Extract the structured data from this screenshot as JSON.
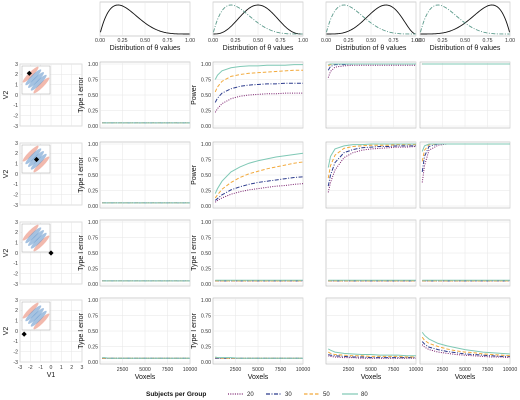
{
  "chart_data": {
    "type": "line",
    "colors": {
      "s20": "#7a1f6e",
      "s30": "#2b3a8c",
      "s50": "#f2a93b",
      "s80": "#7fc8b5",
      "dist_solid": "#111111",
      "dist_dash": "#5d9b8c",
      "blob_red": "#e8806a",
      "blob_blue": "#5b8fc9"
    },
    "legend": {
      "title": "Subjects per Group",
      "placement": "bottom",
      "entries": [
        {
          "label": "20",
          "style": "dotted",
          "color": "#7a1f6e"
        },
        {
          "label": "30",
          "style": "dashdot",
          "color": "#2b3a8c"
        },
        {
          "label": "50",
          "style": "dashed",
          "color": "#f2a93b"
        },
        {
          "label": "80",
          "style": "solid",
          "color": "#7fc8b5"
        }
      ]
    },
    "distribution_panels": {
      "xlabel": "Distribution of θ values",
      "xticks": [
        "0.00",
        "0.25",
        "0.50",
        "0.75",
        "1.00"
      ],
      "xlim": [
        0,
        1
      ],
      "panels": [
        {
          "column": 1,
          "curves": [
            {
              "style": "solid",
              "shape": "beta",
              "a": 2,
              "b": 5
            }
          ]
        },
        {
          "column": 2,
          "curves": [
            {
              "style": "solid",
              "shape": "beta",
              "a": 4,
              "b": 4
            },
            {
              "style": "dashdot",
              "shape": "beta",
              "a": 2,
              "b": 5
            }
          ]
        },
        {
          "column": 3,
          "curves": [
            {
              "style": "solid",
              "shape": "beta",
              "a": 5,
              "b": 3
            },
            {
              "style": "dashdot",
              "shape": "beta",
              "a": 2,
              "b": 5
            }
          ]
        },
        {
          "column": 4,
          "curves": [
            {
              "style": "solid",
              "shape": "beta",
              "a": 5,
              "b": 2
            },
            {
              "style": "dashdot",
              "shape": "beta",
              "a": 2,
              "b": 5
            }
          ]
        }
      ]
    },
    "location_panels": {
      "xlabel": "V1",
      "ylabel": "V2",
      "xlim": [
        -3,
        3
      ],
      "ylim": [
        -3,
        3
      ],
      "xticks": [
        -3,
        -2,
        -1,
        0,
        1,
        2,
        3
      ],
      "yticks": [
        -3,
        -2,
        -1,
        0,
        1,
        2,
        3
      ],
      "points": [
        {
          "row": 1,
          "x": -2.1,
          "y": 2.1
        },
        {
          "row": 2,
          "x": -1.4,
          "y": 1.4
        },
        {
          "row": 3,
          "x": 0.0,
          "y": 0.0
        },
        {
          "row": 4,
          "x": -2.6,
          "y": -0.3
        }
      ]
    },
    "result_panels": {
      "xlabel": "Voxels",
      "x": [
        250,
        500,
        1000,
        2000,
        3000,
        4000,
        5000,
        6000,
        7000,
        8000,
        9000,
        10000
      ],
      "xlim": [
        0,
        10000
      ],
      "xticks": [
        2500,
        5000,
        7500,
        10000
      ],
      "xtick_labels": [
        "2500",
        "5000",
        "7500",
        "10000"
      ],
      "ylim": [
        0,
        1
      ],
      "yticks": [
        0,
        0.25,
        0.5,
        0.75,
        1
      ],
      "ytick_labels": [
        "0.00",
        "0.25",
        "0.50",
        "0.75",
        "1.00"
      ],
      "ylabels": {
        "r1c1": "Type I error",
        "r1c2": "Power",
        "r2c1": "Type I error",
        "r2c2": "Power",
        "r3c1": "Type I error",
        "r3c2": "Type I error",
        "r4c1": "Type I error",
        "r4c2": "Type I error"
      },
      "series_order": [
        "20",
        "30",
        "50",
        "80"
      ],
      "panels": {
        "r1c1": {
          "20": [
            0.05,
            0.05,
            0.05,
            0.05,
            0.05,
            0.05,
            0.05,
            0.05,
            0.05,
            0.05,
            0.05,
            0.05
          ],
          "30": [
            0.05,
            0.05,
            0.05,
            0.05,
            0.05,
            0.05,
            0.05,
            0.05,
            0.05,
            0.05,
            0.05,
            0.05
          ],
          "50": [
            0.05,
            0.05,
            0.05,
            0.05,
            0.05,
            0.05,
            0.05,
            0.05,
            0.05,
            0.05,
            0.05,
            0.05
          ],
          "80": [
            0.05,
            0.05,
            0.05,
            0.05,
            0.05,
            0.05,
            0.05,
            0.05,
            0.05,
            0.05,
            0.05,
            0.05
          ]
        },
        "r1c2": {
          "20": [
            0.22,
            0.28,
            0.36,
            0.44,
            0.48,
            0.5,
            0.51,
            0.52,
            0.52,
            0.53,
            0.53,
            0.53
          ],
          "30": [
            0.38,
            0.45,
            0.53,
            0.6,
            0.64,
            0.66,
            0.67,
            0.68,
            0.68,
            0.69,
            0.69,
            0.69
          ],
          "50": [
            0.55,
            0.63,
            0.72,
            0.8,
            0.83,
            0.85,
            0.86,
            0.87,
            0.88,
            0.89,
            0.9,
            0.9
          ],
          "80": [
            0.75,
            0.82,
            0.89,
            0.94,
            0.96,
            0.97,
            0.97,
            0.98,
            0.98,
            0.98,
            0.99,
            0.99
          ]
        },
        "r1c3": {
          "20": [
            0.78,
            0.88,
            0.95,
            0.97,
            0.98,
            0.98,
            0.98,
            0.98,
            0.98,
            0.98,
            0.98,
            0.98
          ],
          "30": [
            0.9,
            0.96,
            0.99,
            0.99,
            1,
            1,
            1,
            1,
            1,
            1,
            1,
            1
          ],
          "50": [
            0.97,
            0.99,
            1,
            1,
            1,
            1,
            1,
            1,
            1,
            1,
            1,
            1
          ],
          "80": [
            0.99,
            1,
            1,
            1,
            1,
            1,
            1,
            1,
            1,
            1,
            1,
            1
          ]
        },
        "r1c4": {
          "20": [
            1,
            1,
            1,
            1,
            1,
            1,
            1,
            1,
            1,
            1,
            1,
            1
          ],
          "30": [
            1,
            1,
            1,
            1,
            1,
            1,
            1,
            1,
            1,
            1,
            1,
            1
          ],
          "50": [
            1,
            1,
            1,
            1,
            1,
            1,
            1,
            1,
            1,
            1,
            1,
            1
          ],
          "80": [
            1,
            1,
            1,
            1,
            1,
            1,
            1,
            1,
            1,
            1,
            1,
            1
          ]
        },
        "r2c1": {
          "20": [
            0.05,
            0.05,
            0.05,
            0.05,
            0.05,
            0.05,
            0.05,
            0.05,
            0.05,
            0.05,
            0.05,
            0.05
          ],
          "30": [
            0.05,
            0.05,
            0.05,
            0.05,
            0.05,
            0.05,
            0.05,
            0.05,
            0.05,
            0.05,
            0.05,
            0.05
          ],
          "50": [
            0.05,
            0.05,
            0.05,
            0.05,
            0.05,
            0.05,
            0.05,
            0.05,
            0.05,
            0.05,
            0.05,
            0.05
          ],
          "80": [
            0.05,
            0.05,
            0.05,
            0.05,
            0.05,
            0.05,
            0.05,
            0.05,
            0.05,
            0.05,
            0.05,
            0.05
          ]
        },
        "r2c2": {
          "20": [
            0.06,
            0.09,
            0.13,
            0.19,
            0.23,
            0.26,
            0.28,
            0.3,
            0.32,
            0.33,
            0.35,
            0.36
          ],
          "30": [
            0.09,
            0.12,
            0.18,
            0.26,
            0.31,
            0.35,
            0.38,
            0.4,
            0.42,
            0.44,
            0.46,
            0.47
          ],
          "50": [
            0.13,
            0.18,
            0.27,
            0.38,
            0.46,
            0.52,
            0.56,
            0.6,
            0.63,
            0.66,
            0.69,
            0.71
          ],
          "80": [
            0.2,
            0.28,
            0.4,
            0.55,
            0.63,
            0.69,
            0.73,
            0.76,
            0.79,
            0.81,
            0.83,
            0.85
          ]
        },
        "r2c3": {
          "20": [
            0.22,
            0.38,
            0.58,
            0.78,
            0.86,
            0.9,
            0.92,
            0.93,
            0.94,
            0.95,
            0.95,
            0.96
          ],
          "30": [
            0.32,
            0.5,
            0.7,
            0.86,
            0.91,
            0.94,
            0.95,
            0.96,
            0.96,
            0.97,
            0.97,
            0.97
          ],
          "50": [
            0.45,
            0.65,
            0.82,
            0.93,
            0.96,
            0.97,
            0.98,
            0.98,
            0.98,
            0.99,
            0.99,
            0.99
          ],
          "80": [
            0.62,
            0.8,
            0.92,
            0.97,
            0.99,
            0.99,
            1,
            1,
            1,
            1,
            1,
            1
          ]
        },
        "r2c4": {
          "20": [
            0.38,
            0.65,
            0.9,
            0.98,
            1,
            1,
            1,
            1,
            1,
            1,
            1,
            1
          ],
          "30": [
            0.55,
            0.8,
            0.96,
            1,
            1,
            1,
            1,
            1,
            1,
            1,
            1,
            1
          ],
          "50": [
            0.72,
            0.9,
            0.99,
            1,
            1,
            1,
            1,
            1,
            1,
            1,
            1,
            1
          ],
          "80": [
            0.88,
            0.97,
            1,
            1,
            1,
            1,
            1,
            1,
            1,
            1,
            1,
            1
          ]
        },
        "r3c1": {
          "20": [
            0.05,
            0.05,
            0.05,
            0.05,
            0.05,
            0.05,
            0.05,
            0.05,
            0.05,
            0.05,
            0.05,
            0.05
          ],
          "30": [
            0.05,
            0.05,
            0.05,
            0.05,
            0.05,
            0.05,
            0.05,
            0.05,
            0.05,
            0.05,
            0.05,
            0.05
          ],
          "50": [
            0.05,
            0.05,
            0.05,
            0.05,
            0.05,
            0.05,
            0.05,
            0.05,
            0.05,
            0.05,
            0.05,
            0.05
          ],
          "80": [
            0.05,
            0.05,
            0.05,
            0.05,
            0.05,
            0.05,
            0.05,
            0.05,
            0.05,
            0.05,
            0.05,
            0.05
          ]
        },
        "r3c2": {
          "20": [
            0.05,
            0.05,
            0.05,
            0.05,
            0.05,
            0.05,
            0.05,
            0.05,
            0.05,
            0.05,
            0.05,
            0.05
          ],
          "30": [
            0.05,
            0.05,
            0.05,
            0.05,
            0.05,
            0.05,
            0.05,
            0.05,
            0.05,
            0.05,
            0.05,
            0.05
          ],
          "50": [
            0.05,
            0.05,
            0.05,
            0.05,
            0.05,
            0.05,
            0.05,
            0.05,
            0.05,
            0.05,
            0.05,
            0.05
          ],
          "80": [
            0.06,
            0.06,
            0.06,
            0.06,
            0.06,
            0.06,
            0.06,
            0.06,
            0.06,
            0.06,
            0.06,
            0.06
          ]
        },
        "r3c3": {
          "20": [
            0.05,
            0.05,
            0.05,
            0.05,
            0.05,
            0.05,
            0.05,
            0.05,
            0.05,
            0.05,
            0.05,
            0.05
          ],
          "30": [
            0.05,
            0.05,
            0.05,
            0.05,
            0.05,
            0.05,
            0.05,
            0.05,
            0.05,
            0.05,
            0.05,
            0.05
          ],
          "50": [
            0.05,
            0.05,
            0.05,
            0.05,
            0.05,
            0.05,
            0.05,
            0.05,
            0.05,
            0.05,
            0.05,
            0.05
          ],
          "80": [
            0.06,
            0.06,
            0.06,
            0.06,
            0.06,
            0.06,
            0.06,
            0.06,
            0.06,
            0.06,
            0.06,
            0.06
          ]
        },
        "r3c4": {
          "20": [
            0.05,
            0.05,
            0.05,
            0.05,
            0.05,
            0.05,
            0.05,
            0.05,
            0.05,
            0.05,
            0.05,
            0.05
          ],
          "30": [
            0.05,
            0.05,
            0.05,
            0.05,
            0.05,
            0.05,
            0.05,
            0.05,
            0.05,
            0.05,
            0.05,
            0.05
          ],
          "50": [
            0.05,
            0.05,
            0.05,
            0.05,
            0.05,
            0.05,
            0.05,
            0.05,
            0.05,
            0.05,
            0.05,
            0.05
          ],
          "80": [
            0.06,
            0.06,
            0.06,
            0.06,
            0.06,
            0.06,
            0.06,
            0.06,
            0.06,
            0.06,
            0.06,
            0.06
          ]
        },
        "r4c1": {
          "20": [
            0.06,
            0.06,
            0.06,
            0.06,
            0.06,
            0.06,
            0.06,
            0.06,
            0.06,
            0.06,
            0.06,
            0.06
          ],
          "30": [
            0.06,
            0.06,
            0.06,
            0.06,
            0.06,
            0.06,
            0.06,
            0.06,
            0.06,
            0.06,
            0.06,
            0.06
          ],
          "50": [
            0.06,
            0.06,
            0.06,
            0.06,
            0.06,
            0.06,
            0.06,
            0.06,
            0.06,
            0.06,
            0.06,
            0.06
          ],
          "80": [
            0.07,
            0.07,
            0.06,
            0.06,
            0.06,
            0.06,
            0.06,
            0.06,
            0.06,
            0.06,
            0.06,
            0.06
          ]
        },
        "r4c2": {
          "20": [
            0.06,
            0.06,
            0.06,
            0.06,
            0.06,
            0.06,
            0.06,
            0.06,
            0.06,
            0.06,
            0.06,
            0.06
          ],
          "30": [
            0.06,
            0.06,
            0.06,
            0.06,
            0.06,
            0.06,
            0.06,
            0.06,
            0.06,
            0.06,
            0.06,
            0.06
          ],
          "50": [
            0.07,
            0.07,
            0.06,
            0.06,
            0.06,
            0.06,
            0.06,
            0.06,
            0.06,
            0.06,
            0.06,
            0.06
          ],
          "80": [
            0.08,
            0.07,
            0.07,
            0.07,
            0.06,
            0.06,
            0.06,
            0.06,
            0.06,
            0.06,
            0.06,
            0.06
          ]
        },
        "r4c3": {
          "20": [
            0.1,
            0.09,
            0.08,
            0.07,
            0.07,
            0.06,
            0.06,
            0.06,
            0.06,
            0.06,
            0.06,
            0.06
          ],
          "30": [
            0.12,
            0.11,
            0.1,
            0.09,
            0.08,
            0.08,
            0.07,
            0.07,
            0.07,
            0.07,
            0.07,
            0.07
          ],
          "50": [
            0.16,
            0.14,
            0.12,
            0.11,
            0.1,
            0.1,
            0.09,
            0.09,
            0.09,
            0.09,
            0.08,
            0.08
          ],
          "80": [
            0.21,
            0.19,
            0.16,
            0.14,
            0.13,
            0.12,
            0.12,
            0.11,
            0.11,
            0.11,
            0.1,
            0.1
          ]
        },
        "r4c4": {
          "20": [
            0.28,
            0.24,
            0.2,
            0.16,
            0.14,
            0.12,
            0.11,
            0.1,
            0.09,
            0.08,
            0.08,
            0.07
          ],
          "30": [
            0.33,
            0.29,
            0.24,
            0.2,
            0.17,
            0.15,
            0.13,
            0.12,
            0.11,
            0.1,
            0.09,
            0.09
          ],
          "50": [
            0.4,
            0.35,
            0.3,
            0.25,
            0.21,
            0.18,
            0.16,
            0.15,
            0.13,
            0.12,
            0.11,
            0.1
          ],
          "80": [
            0.48,
            0.43,
            0.37,
            0.3,
            0.26,
            0.23,
            0.2,
            0.18,
            0.16,
            0.15,
            0.14,
            0.13
          ]
        }
      }
    }
  }
}
